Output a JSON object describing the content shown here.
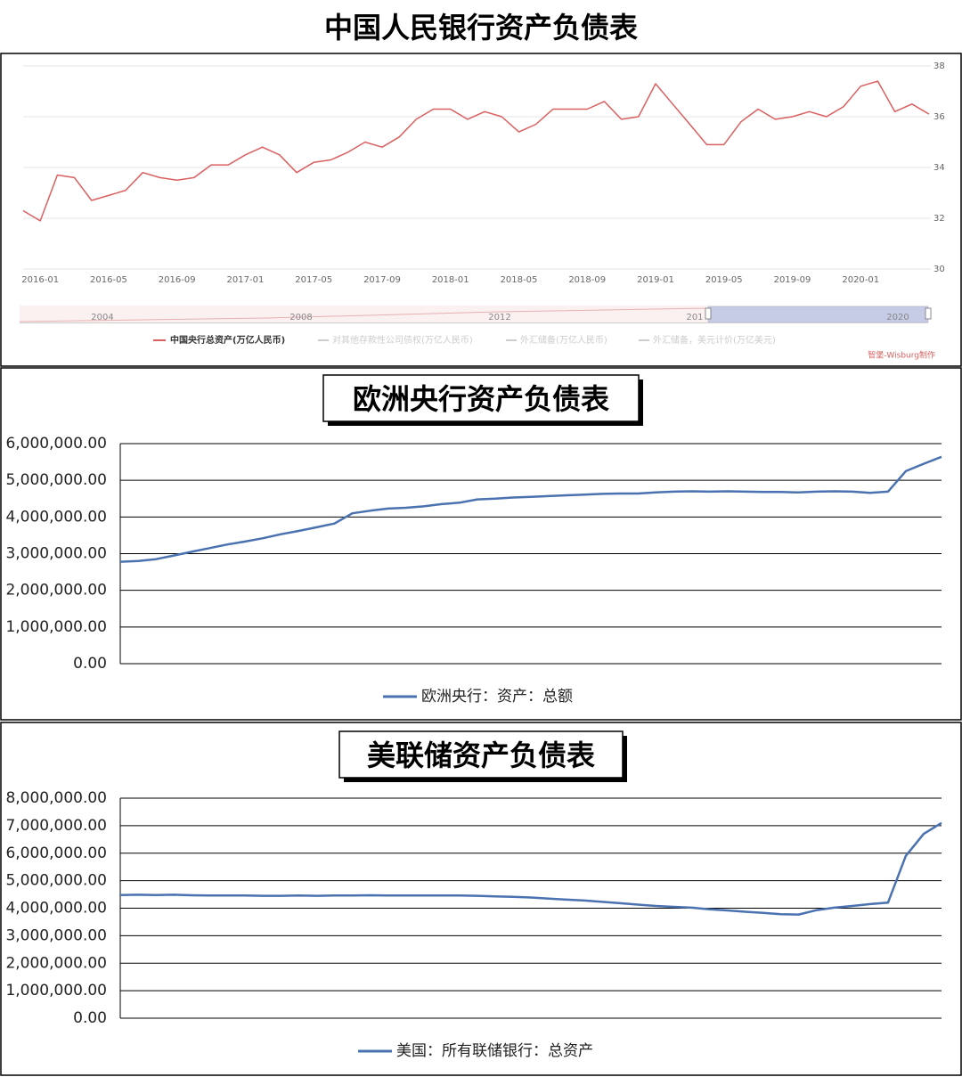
{
  "chart_data": [
    {
      "type": "line",
      "title": "中国人民银行资产负债表",
      "categories": [
        null,
        "2016-01",
        null,
        null,
        null,
        "2016-05",
        null,
        null,
        null,
        "2016-09",
        null,
        null,
        null,
        "2017-01",
        null,
        null,
        null,
        "2017-05",
        null,
        null,
        null,
        "2017-09",
        null,
        null,
        null,
        "2018-01",
        null,
        null,
        null,
        "2018-05",
        null,
        null,
        null,
        "2018-09",
        null,
        null,
        null,
        "2019-01",
        null,
        null,
        null,
        "2019-05",
        null,
        null,
        null,
        "2019-09",
        null,
        null,
        null,
        "2020-01",
        null,
        null,
        null,
        null
      ],
      "series": [
        {
          "name": "中国央行总资产(万亿人民币)",
          "color": "#d9605f",
          "values": [
            32.3,
            31.9,
            33.7,
            33.6,
            32.7,
            32.9,
            33.1,
            33.8,
            33.6,
            33.5,
            33.6,
            34.1,
            34.1,
            34.5,
            34.8,
            34.5,
            33.8,
            34.2,
            34.3,
            34.6,
            35.0,
            34.8,
            35.2,
            35.9,
            36.3,
            36.3,
            35.9,
            36.2,
            36.0,
            35.4,
            35.7,
            36.3,
            36.3,
            36.3,
            36.6,
            35.9,
            36.0,
            37.3,
            36.5,
            35.7,
            34.9,
            34.9,
            35.8,
            36.3,
            35.9,
            36.0,
            36.2,
            36.0,
            36.4,
            37.2,
            37.4,
            36.2,
            36.5,
            36.1
          ]
        }
      ],
      "hidden_series": [
        "对其他存款性公司债权(万亿人民币)",
        "外汇储备(万亿人民币)",
        "外汇储备，美元计价(万亿美元)"
      ],
      "navigator_labels": [
        "2004",
        "2008",
        "2012",
        "201",
        "2020"
      ],
      "source": "智堡-Wisburg制作",
      "ylim": [
        30,
        38
      ],
      "yticks": [
        30,
        32,
        34,
        36,
        38
      ],
      "grid": true
    },
    {
      "type": "line",
      "title": "欧洲央行资产负债表",
      "series": [
        {
          "name": "欧洲央行：资产：总额",
          "color": "#4a72b0",
          "values": [
            2780000,
            2800000,
            2850000,
            2950000,
            3050000,
            3150000,
            3250000,
            3330000,
            3420000,
            3530000,
            3620000,
            3720000,
            3820000,
            4100000,
            4170000,
            4230000,
            4250000,
            4290000,
            4350000,
            4390000,
            4480000,
            4500000,
            4530000,
            4550000,
            4570000,
            4590000,
            4610000,
            4630000,
            4640000,
            4640000,
            4670000,
            4690000,
            4700000,
            4690000,
            4700000,
            4690000,
            4680000,
            4680000,
            4670000,
            4690000,
            4700000,
            4690000,
            4660000,
            4690000,
            5250000,
            5450000,
            5640000
          ]
        }
      ],
      "ylim": [
        0,
        6000000
      ],
      "yticks": [
        {
          "value": 0,
          "label": "0.00"
        },
        {
          "value": 1000000,
          "label": "1,000,000.00"
        },
        {
          "value": 2000000,
          "label": "2,000,000.00"
        },
        {
          "value": 3000000,
          "label": "3,000,000.00"
        },
        {
          "value": 4000000,
          "label": "4,000,000.00"
        },
        {
          "value": 5000000,
          "label": "5,000,000.00"
        },
        {
          "value": 6000000,
          "label": "6,000,000.00"
        }
      ],
      "grid": true
    },
    {
      "type": "line",
      "title": "美联储资产负债表",
      "series": [
        {
          "name": "美国：所有联储银行：总资产",
          "color": "#4a72b0",
          "values": [
            4480000,
            4490000,
            4480000,
            4490000,
            4470000,
            4460000,
            4460000,
            4460000,
            4450000,
            4450000,
            4460000,
            4450000,
            4460000,
            4460000,
            4470000,
            4460000,
            4460000,
            4460000,
            4460000,
            4460000,
            4450000,
            4430000,
            4410000,
            4390000,
            4350000,
            4310000,
            4280000,
            4230000,
            4180000,
            4130000,
            4080000,
            4050000,
            4020000,
            3960000,
            3920000,
            3870000,
            3830000,
            3780000,
            3770000,
            3930000,
            4020000,
            4080000,
            4150000,
            4200000,
            5900000,
            6700000,
            7100000
          ]
        }
      ],
      "ylim": [
        0,
        8000000
      ],
      "yticks": [
        {
          "value": 0,
          "label": "0.00"
        },
        {
          "value": 1000000,
          "label": "1,000,000.00"
        },
        {
          "value": 2000000,
          "label": "2,000,000.00"
        },
        {
          "value": 3000000,
          "label": "3,000,000.00"
        },
        {
          "value": 4000000,
          "label": "4,000,000.00"
        },
        {
          "value": 5000000,
          "label": "5,000,000.00"
        },
        {
          "value": 6000000,
          "label": "6,000,000.00"
        },
        {
          "value": 7000000,
          "label": "7,000,000.00"
        },
        {
          "value": 8000000,
          "label": "8,000,000.00"
        }
      ],
      "grid": true
    }
  ]
}
